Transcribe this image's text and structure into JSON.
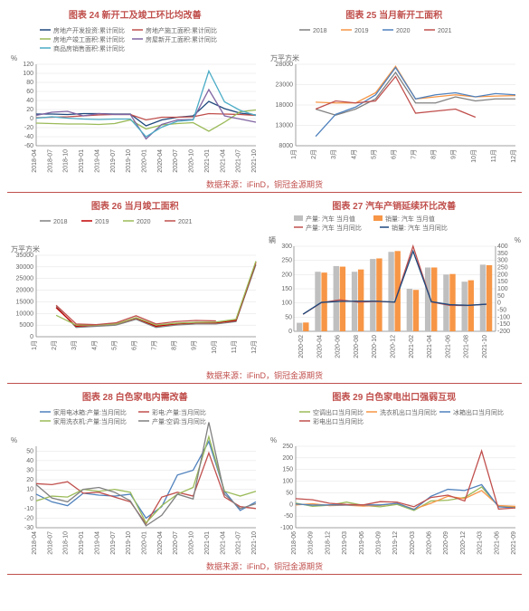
{
  "source_line": "数据来源：iFinD，铜冠金源期货",
  "axis_color": "#888888",
  "grid_color": "#e0e0e0",
  "tick_color": "#666666",
  "title_color": "#c0504d",
  "background_color": "#ffffff",
  "label_fontsize": 7,
  "title_fontsize": 10,
  "chart24": {
    "title": "图表 24  新开工及竣工环比均改善",
    "type": "line",
    "ylabel": "%",
    "ylim": [
      -60,
      120
    ],
    "ytick_step": 20,
    "x_labels": [
      "2018-04",
      "2018-07",
      "2018-10",
      "2019-01",
      "2019-04",
      "2019-07",
      "2019-10",
      "2020-01",
      "2020-04",
      "2020-07",
      "2020-10",
      "2021-01",
      "2021-04",
      "2021-07",
      "2021-10"
    ],
    "series": [
      {
        "name": "房地产开发投资:累计同比",
        "color": "#1f497d",
        "values": [
          10,
          10,
          9,
          11,
          11,
          10,
          10,
          -16,
          -3,
          3,
          6,
          38,
          22,
          12,
          8
        ]
      },
      {
        "name": "房地产施工面积:累计同比",
        "color": "#c0504d",
        "values": [
          2,
          3,
          4,
          6,
          8,
          9,
          9,
          -3,
          3,
          3,
          4,
          11,
          10,
          9,
          7
        ]
      },
      {
        "name": "房地产竣工面积:累计同比",
        "color": "#9bbb59",
        "values": [
          -10,
          -11,
          -12,
          -12,
          -13,
          -11,
          -3,
          -23,
          -14,
          -11,
          -9,
          -28,
          -8,
          15,
          19
        ]
      },
      {
        "name": "房屋新开工面积:累计同比",
        "color": "#8064a2",
        "values": [
          7,
          14,
          16,
          6,
          11,
          9,
          9,
          -45,
          -13,
          -3,
          -2,
          64,
          6,
          -1,
          -8
        ]
      },
      {
        "name": "商品房销售面积:累计同比",
        "color": "#4bacc6",
        "values": [
          1,
          4,
          1,
          -1,
          -2,
          -1,
          -1,
          -40,
          -19,
          -6,
          -3,
          105,
          37,
          18,
          7
        ]
      }
    ]
  },
  "chart25": {
    "title": "图表 25  当月新开工面积",
    "type": "line",
    "ylabel": "万平方米",
    "ylim": [
      8000,
      28000
    ],
    "ytick_step": 5000,
    "x_labels": [
      "1月",
      "2月",
      "3月",
      "4月",
      "5月",
      "6月",
      "7月",
      "8月",
      "9月",
      "10月",
      "11月",
      "12月"
    ],
    "series": [
      {
        "name": "2018",
        "color": "#808080",
        "values": [
          null,
          17000,
          15500,
          17000,
          19500,
          26000,
          18500,
          18500,
          20000,
          19000,
          19500,
          19500
        ]
      },
      {
        "name": "2019",
        "color": "#f79646",
        "values": [
          null,
          18700,
          18500,
          18500,
          21000,
          27500,
          19500,
          20000,
          20500,
          20000,
          20200,
          20300
        ]
      },
      {
        "name": "2020",
        "color": "#4f81bd",
        "values": [
          null,
          10300,
          15700,
          17500,
          20500,
          27200,
          19500,
          20500,
          21000,
          20000,
          20800,
          20500
        ]
      },
      {
        "name": "2021",
        "color": "#c0504d",
        "values": [
          null,
          17000,
          19000,
          18500,
          19000,
          25000,
          16000,
          16500,
          17000,
          15000,
          null,
          null
        ]
      }
    ]
  },
  "chart26": {
    "title": "图表 26  当月竣工面积",
    "type": "line",
    "ylabel": "万平方米",
    "ylim": [
      0,
      35000
    ],
    "ytick_step": 5000,
    "x_labels": [
      "1月",
      "2月",
      "3月",
      "4月",
      "5月",
      "6月",
      "7月",
      "8月",
      "9月",
      "10月",
      "11月",
      "12月"
    ],
    "series": [
      {
        "name": "2018",
        "color": "#808080",
        "values": [
          null,
          13000,
          4000,
          4500,
          5000,
          7500,
          4000,
          5000,
          5500,
          5500,
          6500,
          31000
        ]
      },
      {
        "name": "2019",
        "color": "#c00000",
        "values": [
          null,
          12500,
          4500,
          5000,
          5500,
          8000,
          4500,
          5500,
          6000,
          6000,
          7000,
          32000
        ]
      },
      {
        "name": "2020",
        "color": "#9bbb59",
        "values": [
          null,
          9200,
          5000,
          5000,
          5500,
          8200,
          5000,
          5800,
          6200,
          6300,
          7500,
          32500
        ]
      },
      {
        "name": "2021",
        "color": "#c0504d",
        "values": [
          null,
          13500,
          5500,
          5200,
          6000,
          9000,
          5500,
          6500,
          7000,
          6800,
          null,
          null
        ]
      }
    ]
  },
  "chart27": {
    "title": "图表 27  汽车产销延续环比改善",
    "type": "combo",
    "ylabel_left": "辆",
    "ylabel_right": "%",
    "ylim_left": [
      0,
      300
    ],
    "ytick_left_step": 50,
    "ylim_right": [
      -200,
      400
    ],
    "ytick_right_step": 50,
    "x_labels": [
      "2020-02",
      "2020-04",
      "2020-06",
      "2020-08",
      "2020-10",
      "2020-12",
      "2021-02",
      "2021-04",
      "2021-06",
      "2021-08",
      "2021-10"
    ],
    "bar_width": 0.35,
    "bars": [
      {
        "name": "产量: 汽车 当月值",
        "color": "#bfbfbf",
        "values": [
          30,
          210,
          230,
          210,
          255,
          280,
          150,
          225,
          200,
          175,
          235
        ]
      },
      {
        "name": "销量: 汽车 当月值",
        "color": "#f79646",
        "values": [
          31,
          207,
          228,
          218,
          257,
          283,
          146,
          225,
          202,
          180,
          233
        ]
      }
    ],
    "lines": [
      {
        "name": "产量: 汽车 当月同比",
        "color": "#c0504d",
        "values": [
          -80,
          2,
          22,
          6,
          11,
          6,
          400,
          7,
          -17,
          -18,
          -9
        ]
      },
      {
        "name": "销量: 汽车 当月同比",
        "color": "#1f497d",
        "values": [
          -79,
          4,
          11,
          12,
          12,
          6,
          365,
          9,
          -12,
          -17,
          -9
        ]
      }
    ]
  },
  "chart28": {
    "title": "图表 28  白色家电内需改善",
    "type": "line",
    "ylabel": "%",
    "ylim": [
      -30,
      55
    ],
    "ytick_step": 10,
    "x_labels": [
      "2018-04",
      "2018-07",
      "2018-10",
      "2019-01",
      "2019-04",
      "2019-07",
      "2019-10",
      "2020-01",
      "2020-04",
      "2020-07",
      "2020-10",
      "2021-01",
      "2021-04",
      "2021-07",
      "2021-10"
    ],
    "series": [
      {
        "name": "家用电冰箱:产量:当月同比",
        "color": "#4f81bd",
        "values": [
          5,
          -3,
          -7,
          6,
          4,
          3,
          5,
          -20,
          -8,
          25,
          30,
          60,
          8,
          -12,
          -3
        ]
      },
      {
        "name": "彩电:产量:当月同比",
        "color": "#c0504d",
        "values": [
          16,
          15,
          18,
          6,
          7,
          2,
          -3,
          -26,
          2,
          7,
          3,
          48,
          2,
          -8,
          -10
        ]
      },
      {
        "name": "家用洗衣机:产量:当月同比",
        "color": "#9bbb59",
        "values": [
          -2,
          3,
          2,
          10,
          8,
          10,
          7,
          -25,
          -7,
          5,
          12,
          65,
          8,
          3,
          8
        ]
      },
      {
        "name": "产量:空调:当月同比",
        "color": "#808080",
        "values": [
          15,
          1,
          -3,
          10,
          12,
          7,
          -2,
          -28,
          -17,
          5,
          0,
          80,
          5,
          -10,
          -5
        ]
      }
    ]
  },
  "chart29": {
    "title": "图表 29  白色家电出口强弱互现",
    "type": "line",
    "ylabel": "%",
    "ylim": [
      -100,
      250
    ],
    "ytick_step": 50,
    "x_labels": [
      "2018-06",
      "2018-09",
      "2018-12",
      "2019-03",
      "2019-06",
      "2019-09",
      "2019-12",
      "2020-03",
      "2020-06",
      "2020-09",
      "2020-12",
      "2021-03",
      "2021-06",
      "2021-09"
    ],
    "series": [
      {
        "name": "空调出口当月同比",
        "color": "#9bbb59",
        "values": [
          6,
          -8,
          -3,
          10,
          -4,
          -10,
          0,
          -26,
          15,
          18,
          30,
          75,
          -8,
          -12
        ]
      },
      {
        "name": "洗衣机出口当月同比",
        "color": "#f79646",
        "values": [
          -2,
          3,
          -5,
          -3,
          -7,
          -4,
          5,
          -20,
          5,
          35,
          25,
          60,
          -5,
          -8
        ]
      },
      {
        "name": "冰箱出口当月同比",
        "color": "#4f81bd",
        "values": [
          2,
          -3,
          -2,
          -2,
          -2,
          -2,
          5,
          -22,
          35,
          65,
          60,
          85,
          -10,
          -15
        ]
      },
      {
        "name": "彩电出口当月同比",
        "color": "#c0504d",
        "values": [
          25,
          20,
          5,
          0,
          -2,
          12,
          10,
          -10,
          30,
          40,
          15,
          230,
          -20,
          -15
        ]
      }
    ]
  }
}
